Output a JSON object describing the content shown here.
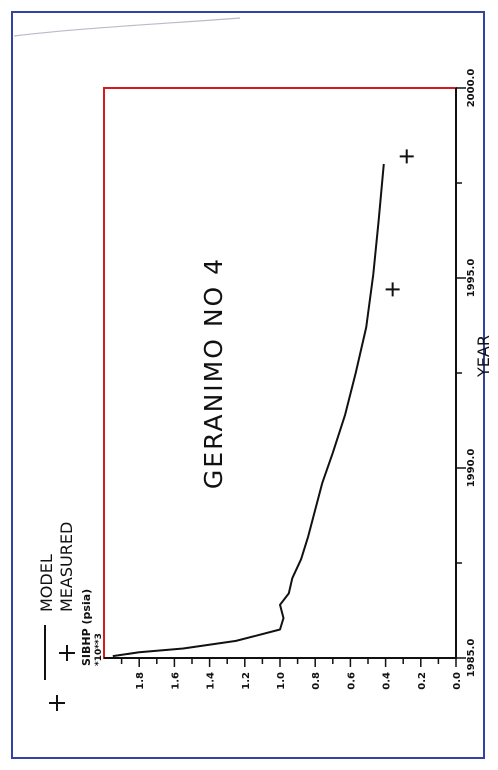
{
  "chart_data": {
    "type": "line",
    "title": "GERANIMO NO 4",
    "xlabel": "YEAR",
    "ylabel": "SIBHP (psia)",
    "ylabel_multiplier": "*10**3",
    "xlim": [
      1985.0,
      2000.0
    ],
    "ylim": [
      0.0,
      2.0
    ],
    "x_ticks": [
      1985.0,
      1990.0,
      1995.0,
      2000.0
    ],
    "x_tick_labels": [
      "1985.0",
      "1990.0",
      "1995.0",
      "2000.0"
    ],
    "y_ticks": [
      0.0,
      0.2,
      0.4,
      0.6,
      0.8,
      1.0,
      1.2,
      1.4,
      1.6,
      1.8
    ],
    "y_tick_labels": [
      "0.0",
      "0.2",
      "0.4",
      "0.6",
      "0.8",
      "1.0",
      "1.2",
      "1.4",
      "1.6",
      "1.8"
    ],
    "legend_position": "top-left (rotated)",
    "series": [
      {
        "name": "MODEL",
        "style": "line",
        "x": [
          1985.05,
          1985.15,
          1985.25,
          1985.45,
          1985.75,
          1986.05,
          1986.4,
          1986.7,
          1987.1,
          1987.6,
          1988.2,
          1988.9,
          1989.6,
          1990.4,
          1991.4,
          1992.5,
          1993.7,
          1995.1,
          1996.5,
          1998.0
        ],
        "y": [
          1.95,
          1.8,
          1.55,
          1.25,
          1.0,
          0.98,
          1.0,
          0.95,
          0.93,
          0.88,
          0.84,
          0.8,
          0.76,
          0.7,
          0.63,
          0.57,
          0.51,
          0.47,
          0.44,
          0.41
        ]
      },
      {
        "name": "MEASURED",
        "style": "marker-plus",
        "x": [
          1994.7,
          1998.2
        ],
        "y": [
          0.36,
          0.28
        ]
      }
    ]
  },
  "colors": {
    "frame": "#3244a0",
    "plot_box": "#d41c1c",
    "ink": "#111111"
  }
}
